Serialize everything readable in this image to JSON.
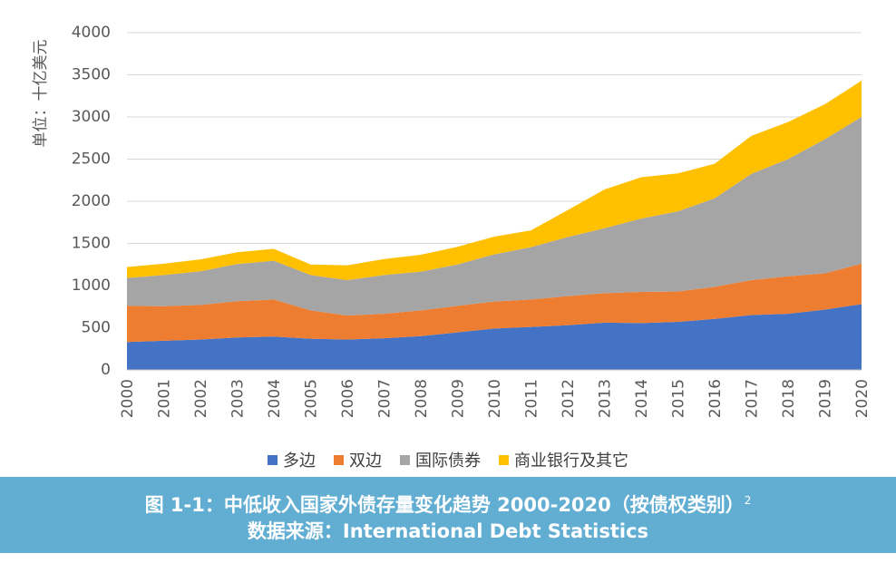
{
  "chart_data": {
    "type": "area",
    "stacked": true,
    "ylabel": "单位：十亿美元",
    "xlabel": "",
    "ylim": [
      0,
      4000
    ],
    "yticks": [
      0,
      500,
      1000,
      1500,
      2000,
      2500,
      3000,
      3500,
      4000
    ],
    "grid": true,
    "legend_position": "bottom",
    "x": [
      "2000",
      "2001",
      "2002",
      "2003",
      "2004",
      "2005",
      "2006",
      "2007",
      "2008",
      "2009",
      "2010",
      "2011",
      "2012",
      "2013",
      "2014",
      "2015",
      "2016",
      "2017",
      "2018",
      "2019",
      "2020"
    ],
    "series": [
      {
        "name": "多边",
        "color": "#4472c4",
        "values": [
          330,
          345,
          360,
          385,
          395,
          370,
          360,
          375,
          400,
          445,
          490,
          510,
          530,
          560,
          555,
          570,
          605,
          650,
          665,
          715,
          780
        ]
      },
      {
        "name": "双边",
        "color": "#ed7d31",
        "values": [
          430,
          410,
          410,
          430,
          440,
          335,
          285,
          290,
          305,
          315,
          320,
          325,
          345,
          350,
          370,
          360,
          380,
          415,
          445,
          430,
          480
        ]
      },
      {
        "name": "国际债券",
        "color": "#a5a5a5",
        "values": [
          330,
          370,
          400,
          440,
          460,
          420,
          420,
          460,
          460,
          490,
          560,
          620,
          700,
          770,
          870,
          950,
          1050,
          1260,
          1390,
          1590,
          1740
        ]
      },
      {
        "name": "商业银行及其它",
        "color": "#ffc000",
        "values": [
          130,
          135,
          140,
          140,
          140,
          125,
          175,
          190,
          200,
          210,
          210,
          200,
          320,
          460,
          490,
          450,
          410,
          450,
          440,
          415,
          430
        ]
      }
    ]
  },
  "caption": {
    "line1": "图 1-1：中低收入国家外债存量变化趋势 2000-2020（按债权类别）",
    "line1_sup": "2",
    "line2": "数据来源：International Debt Statistics"
  }
}
